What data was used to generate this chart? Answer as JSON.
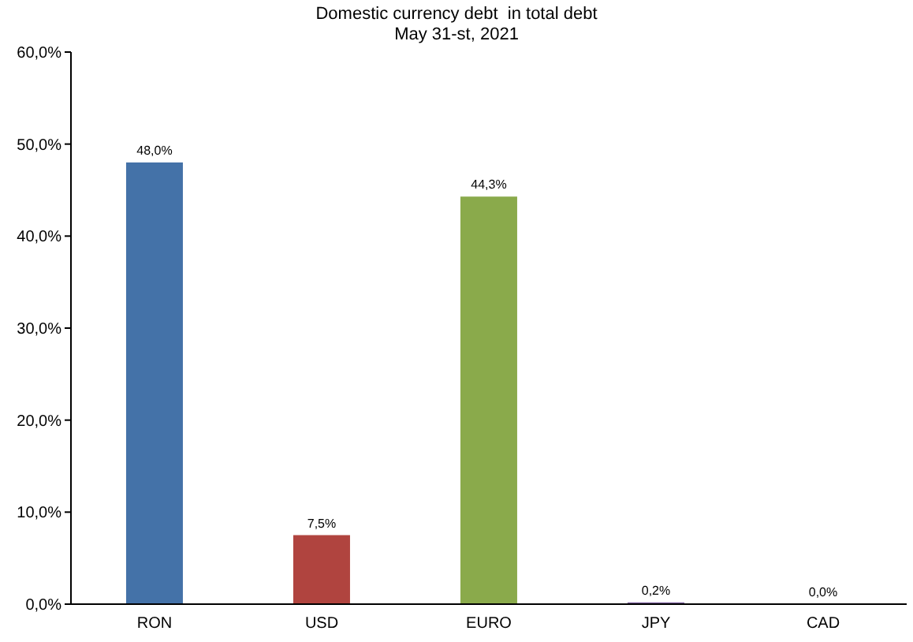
{
  "chart_data": {
    "type": "bar",
    "title": "Domestic currency debt  in total debt",
    "subtitle": "May 31-st, 2021",
    "categories": [
      "RON",
      "USD",
      "EURO",
      "JPY",
      "CAD"
    ],
    "values": [
      48.0,
      7.5,
      44.3,
      0.2,
      0.0
    ],
    "colors": [
      "#4472a8",
      "#b0443f",
      "#8aaa4b",
      "#7e62a0",
      "#4aa3bf"
    ],
    "value_labels": [
      "48,0%",
      "7,5%",
      "44,3%",
      "0,2%",
      "0,0%"
    ],
    "ylim": [
      0,
      60
    ],
    "yticks": [
      {
        "value": 0,
        "label": "0,0%"
      },
      {
        "value": 10,
        "label": "10,0%"
      },
      {
        "value": 20,
        "label": "20,0%"
      },
      {
        "value": 30,
        "label": "30,0%"
      },
      {
        "value": 40,
        "label": "40,0%"
      },
      {
        "value": 50,
        "label": "50,0%"
      },
      {
        "value": 60,
        "label": "60,0%"
      }
    ],
    "grid": false,
    "legend": false
  }
}
